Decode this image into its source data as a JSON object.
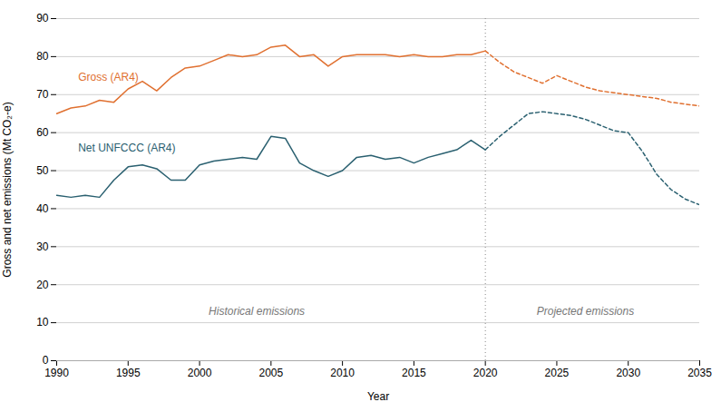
{
  "chart_data": {
    "type": "line",
    "xlabel": "Year",
    "ylabel": "Gross and net emissions (Mt CO₂-e)",
    "xlim": [
      1990,
      2035
    ],
    "xticks": [
      1990,
      1995,
      2000,
      2005,
      2010,
      2015,
      2020,
      2025,
      2030,
      2035
    ],
    "ylim": [
      0,
      90
    ],
    "yticks": [
      0,
      10,
      20,
      30,
      40,
      50,
      60,
      70,
      80,
      90
    ],
    "grid": true,
    "series": [
      {
        "color": "#e07030",
        "line_style": "solid",
        "x": [
          1990,
          1991,
          1992,
          1993,
          1994,
          1995,
          1996,
          1997,
          1998,
          1999,
          2000,
          2001,
          2002,
          2003,
          2004,
          2005,
          2006,
          2007,
          2008,
          2009,
          2010,
          2011,
          2012,
          2013,
          2014,
          2015,
          2016,
          2017,
          2018,
          2019,
          2020
        ],
        "values": [
          65.0,
          66.5,
          67.0,
          68.5,
          68.0,
          71.5,
          73.5,
          71.0,
          74.5,
          77.0,
          77.5,
          79.0,
          80.5,
          80.0,
          80.5,
          82.5,
          83.0,
          80.0,
          80.5,
          77.5,
          80.0,
          80.5,
          80.5,
          80.5,
          80.0,
          80.5,
          80.0,
          80.0,
          80.5,
          80.5,
          81.5
        ]
      },
      {
        "color": "#e07030",
        "line_style": "dashed",
        "x": [
          2020,
          2021,
          2022,
          2023,
          2024,
          2025,
          2026,
          2027,
          2028,
          2029,
          2030,
          2031,
          2032,
          2033,
          2034,
          2035
        ],
        "values": [
          81.5,
          78.5,
          76.0,
          74.5,
          73.0,
          75.0,
          73.5,
          72.0,
          71.0,
          70.5,
          70.0,
          69.5,
          69.0,
          68.0,
          67.5,
          67.0
        ]
      },
      {
        "color": "#2a6070",
        "line_style": "solid",
        "x": [
          1990,
          1991,
          1992,
          1993,
          1994,
          1995,
          1996,
          1997,
          1998,
          1999,
          2000,
          2001,
          2002,
          2003,
          2004,
          2005,
          2006,
          2007,
          2008,
          2009,
          2010,
          2011,
          2012,
          2013,
          2014,
          2015,
          2016,
          2017,
          2018,
          2019,
          2020
        ],
        "values": [
          43.5,
          43.0,
          43.5,
          43.0,
          47.5,
          51.0,
          51.5,
          50.5,
          47.5,
          47.5,
          51.5,
          52.5,
          53.0,
          53.5,
          53.0,
          59.0,
          58.5,
          52.0,
          50.0,
          48.5,
          50.0,
          53.5,
          54.0,
          53.0,
          53.5,
          52.0,
          53.5,
          54.5,
          55.5,
          58.0,
          55.5
        ]
      },
      {
        "color": "#2a6070",
        "line_style": "dashed",
        "x": [
          2020,
          2021,
          2022,
          2023,
          2024,
          2025,
          2026,
          2027,
          2028,
          2029,
          2030,
          2031,
          2032,
          2033,
          2034,
          2035
        ],
        "values": [
          55.5,
          59.0,
          62.0,
          65.0,
          65.5,
          65.0,
          64.5,
          63.5,
          62.0,
          60.5,
          60.0,
          55.0,
          49.0,
          45.0,
          42.5,
          41.0
        ]
      }
    ],
    "annotations": [
      {
        "type": "vline",
        "x": 2020,
        "color": "#888888",
        "line_style": "dotted"
      },
      {
        "type": "text",
        "text": "Gross (AR4)",
        "x": 1991.5,
        "y": 74.5,
        "color": "#e07030",
        "align": "left"
      },
      {
        "type": "text",
        "text": "Net UNFCCC (AR4)",
        "x": 1991.5,
        "y": 56.0,
        "color": "#2a6070",
        "align": "left"
      },
      {
        "type": "text",
        "text": "Historical emissions",
        "x": 2004,
        "y": 13,
        "color": "#777777",
        "align": "center",
        "font_style": "italic"
      },
      {
        "type": "text",
        "text": "Projected emissions",
        "x": 2027,
        "y": 13,
        "color": "#777777",
        "align": "center",
        "font_style": "italic"
      }
    ]
  }
}
